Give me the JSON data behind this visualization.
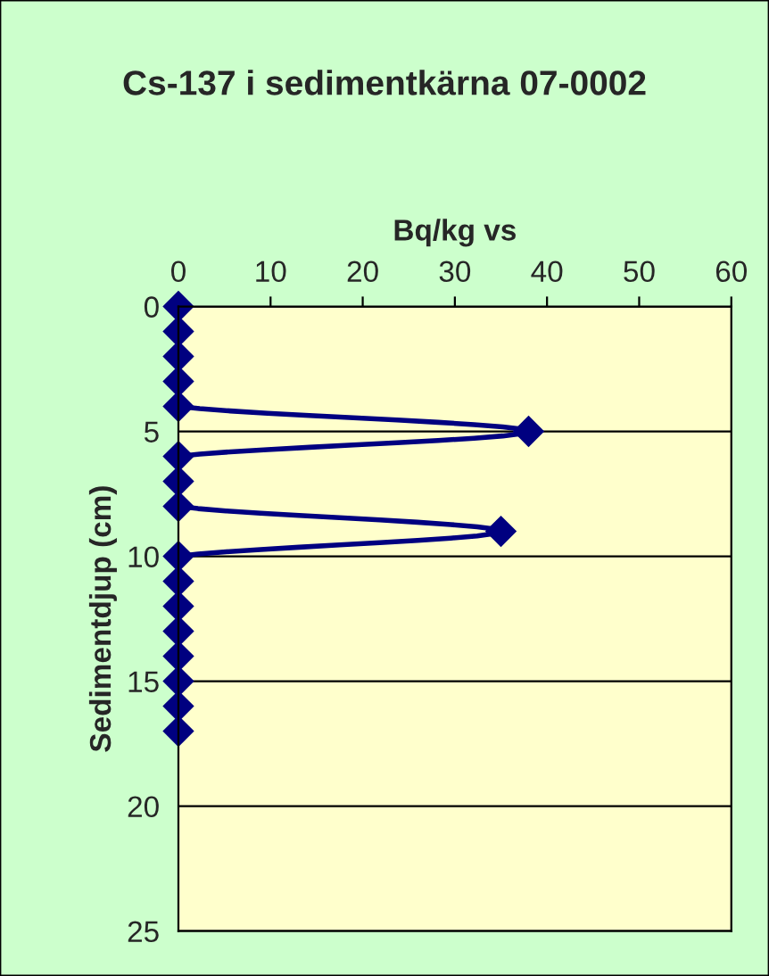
{
  "chart_data": {
    "type": "line",
    "title": "Cs-137 i sedimentkärna 07-0002",
    "xlabel": "Bq/kg vs",
    "ylabel": "Sedimentdjup (cm)",
    "series": [
      {
        "color": "#000080",
        "x": [
          0,
          0,
          0,
          0,
          0,
          38,
          0,
          0,
          0,
          35,
          0,
          0,
          0,
          0,
          0,
          0,
          0,
          0
        ],
        "values": [
          0,
          1,
          2,
          3,
          4,
          5,
          6,
          7,
          8,
          9,
          10,
          11,
          12,
          13,
          14,
          15,
          16,
          17
        ]
      }
    ],
    "xlim": [
      0,
      60
    ],
    "xticks": [
      0,
      10,
      20,
      30,
      40,
      50,
      60
    ],
    "ylim": [
      25,
      0
    ],
    "yticks": [
      0,
      5,
      10,
      15,
      20,
      25
    ],
    "grid": "y",
    "marker": "diamond",
    "line_style": "solid",
    "legend": false
  }
}
